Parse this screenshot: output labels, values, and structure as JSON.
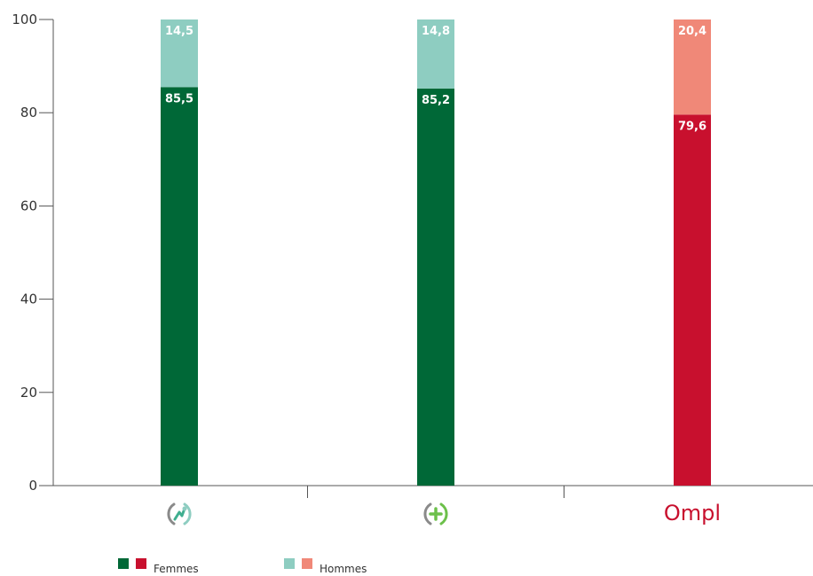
{
  "chart_data": {
    "type": "bar",
    "stacked": true,
    "title": "",
    "xlabel": "",
    "ylabel": "",
    "ylim": [
      0,
      100
    ],
    "yticks": [
      0,
      20,
      40,
      60,
      80,
      100
    ],
    "categories": [
      {
        "logo": "green-swirl-logo-icon",
        "logo_text": ""
      },
      {
        "logo": "green-plus-logo-icon",
        "logo_text": ""
      },
      {
        "logo": "ompl-logo",
        "logo_text": "Ompl"
      }
    ],
    "series": [
      {
        "name": "Femmes",
        "values": [
          85.5,
          85.2,
          79.6
        ],
        "labels": [
          "85,5",
          "85,2",
          "79,6"
        ],
        "colors": [
          "#006837",
          "#006837",
          "#c8102e"
        ]
      },
      {
        "name": "Hommes",
        "values": [
          14.5,
          14.8,
          20.4
        ],
        "labels": [
          "14,5",
          "14,8",
          "20,4"
        ],
        "colors": [
          "#8ecdc1",
          "#8ecdc1",
          "#f08878"
        ]
      }
    ],
    "legend": {
      "placement": "bottom-left",
      "items": [
        {
          "label": "Femmes",
          "swatches": [
            "#006837",
            "#c8102e"
          ]
        },
        {
          "label": "Hommes",
          "swatches": [
            "#8ecdc1",
            "#f08878"
          ]
        }
      ]
    },
    "grid": false
  }
}
